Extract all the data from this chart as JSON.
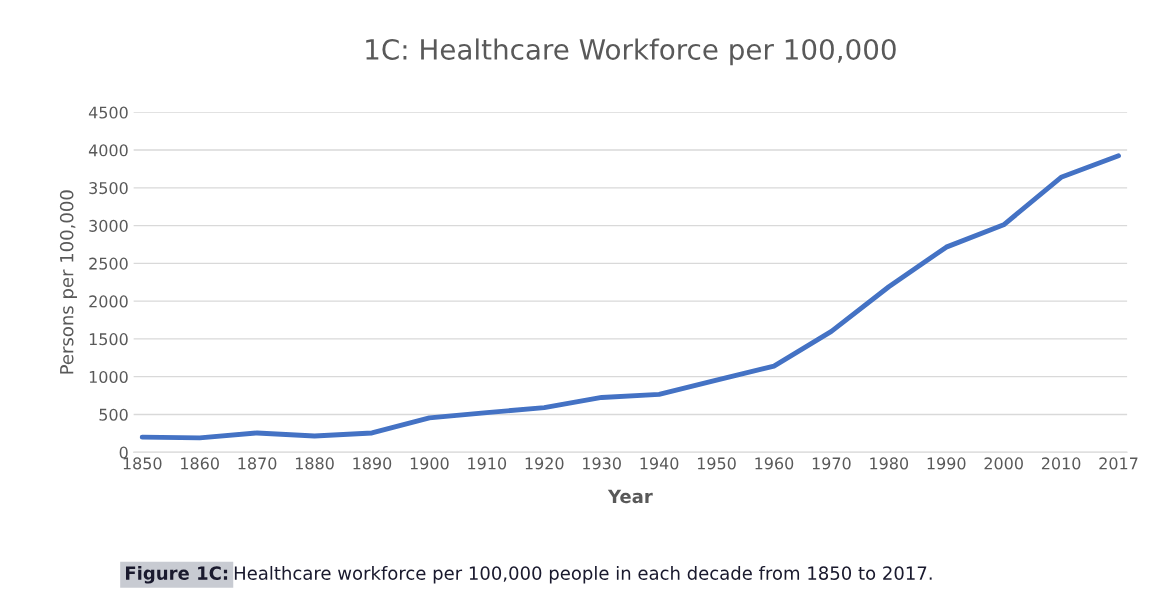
{
  "chart_data": {
    "type": "line",
    "title": "1C: Healthcare Workforce per 100,000",
    "xlabel": "Year",
    "ylabel": "Persons per 100,000",
    "categories": [
      "1850",
      "1860",
      "1870",
      "1880",
      "1890",
      "1900",
      "1910",
      "1920",
      "1930",
      "1940",
      "1950",
      "1960",
      "1970",
      "1980",
      "1990",
      "2000",
      "2010",
      "2017"
    ],
    "series": [
      {
        "color": "#4472c4",
        "values": [
          200,
          190,
          255,
          215,
          255,
          455,
          525,
          590,
          725,
          765,
          955,
          1140,
          1600,
          2190,
          2715,
          3010,
          3640,
          3925
        ]
      }
    ],
    "ylim": [
      0,
      4500
    ],
    "yticks": [
      0,
      500,
      1000,
      1500,
      2000,
      2500,
      3000,
      3500,
      4000,
      4500
    ],
    "grid": "y",
    "legend": false,
    "marker": "none",
    "line_style": "solid",
    "annotations": [
      "Figure 1C:",
      "Healthcare workforce per 100,000 people in each decade from 1850 to 2017."
    ]
  }
}
